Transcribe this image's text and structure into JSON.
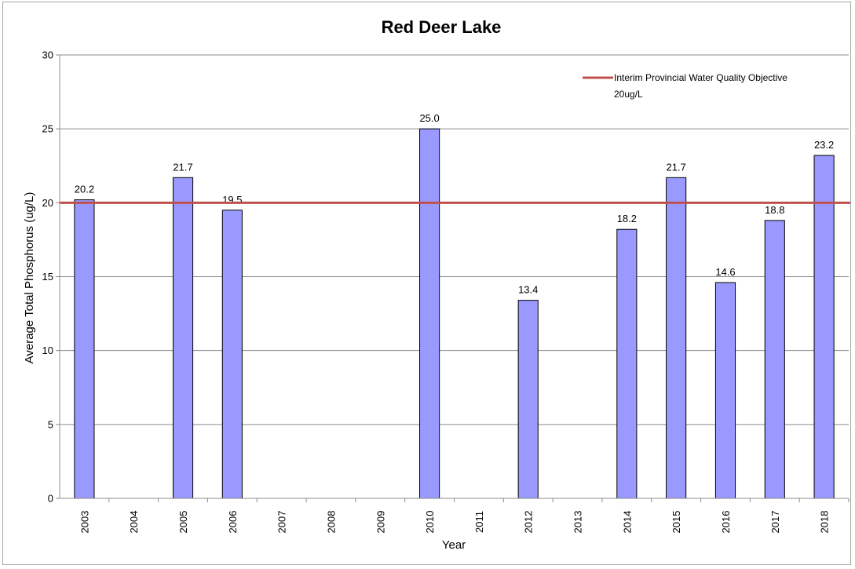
{
  "chart_data": {
    "type": "bar",
    "title": "Red Deer Lake",
    "xlabel": "Year",
    "ylabel": "Average Total Phosphorus (ug/L)",
    "ylim": [
      0,
      30
    ],
    "yticks": [
      0,
      5,
      10,
      15,
      20,
      25,
      30
    ],
    "grid": true,
    "categories": [
      "2003",
      "2004",
      "2005",
      "2006",
      "2007",
      "2008",
      "2009",
      "2010",
      "2011",
      "2012",
      "2013",
      "2014",
      "2015",
      "2016",
      "2017",
      "2018"
    ],
    "values": [
      20.2,
      null,
      21.7,
      19.5,
      null,
      null,
      null,
      25.0,
      null,
      13.4,
      null,
      18.2,
      21.7,
      14.6,
      18.8,
      23.2
    ],
    "data_labels": [
      "20.2",
      "",
      "21.7",
      "19.5",
      "",
      "",
      "",
      "25.0",
      "",
      "13.4",
      "",
      "18.2",
      "21.7",
      "14.6",
      "18.8",
      "23.2"
    ],
    "bar_color": "#9999ff",
    "reference_line": {
      "value": 20,
      "color": "#c0504d",
      "label_line1": "Interim Provincial Water Quality Objective",
      "label_line2": "20ug/L"
    },
    "legend_position": "top-right"
  }
}
